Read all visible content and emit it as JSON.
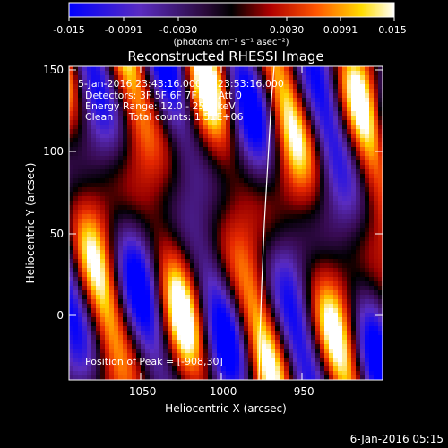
{
  "colorbar": {
    "ticks": [
      "-0.015",
      "-0.0091",
      "-0.0030",
      "0.0030",
      "0.0091",
      "0.015"
    ],
    "unit_label": "(photons cm⁻² s⁻¹ asec⁻²)"
  },
  "image": {
    "title": "Reconstructed RHESSI Image",
    "time_range": "5-Jan-2016 23:43:16.000 to 23:53:16.000",
    "detectors": "Detectors: 3F 5F 6F 7F 8F, Att 0",
    "energy_range": "Energy Range: 12.0 - 25.0 keV",
    "clean_info": "Clean     Total counts: 1.51E+06",
    "peak_position": "Position of Peak = [-908,30]"
  },
  "axes": {
    "x_label": "Heliocentric X (arcsec)",
    "y_label": "Heliocentric Y (arcsec)",
    "x_ticks": [
      "-1050",
      "-1000",
      "-950"
    ],
    "y_ticks": [
      "150",
      "100",
      "50",
      "0"
    ]
  },
  "footer": {
    "timestamp": "6-Jan-2016 05:15"
  },
  "colors": {
    "cmap_low": "#0000ff",
    "cmap_mid_low": "#7f1fbf",
    "cmap_mid": "#000000",
    "cmap_mid_high": "#ff3300",
    "cmap_high": "#ffffff",
    "limb_line": "#ffffff"
  }
}
